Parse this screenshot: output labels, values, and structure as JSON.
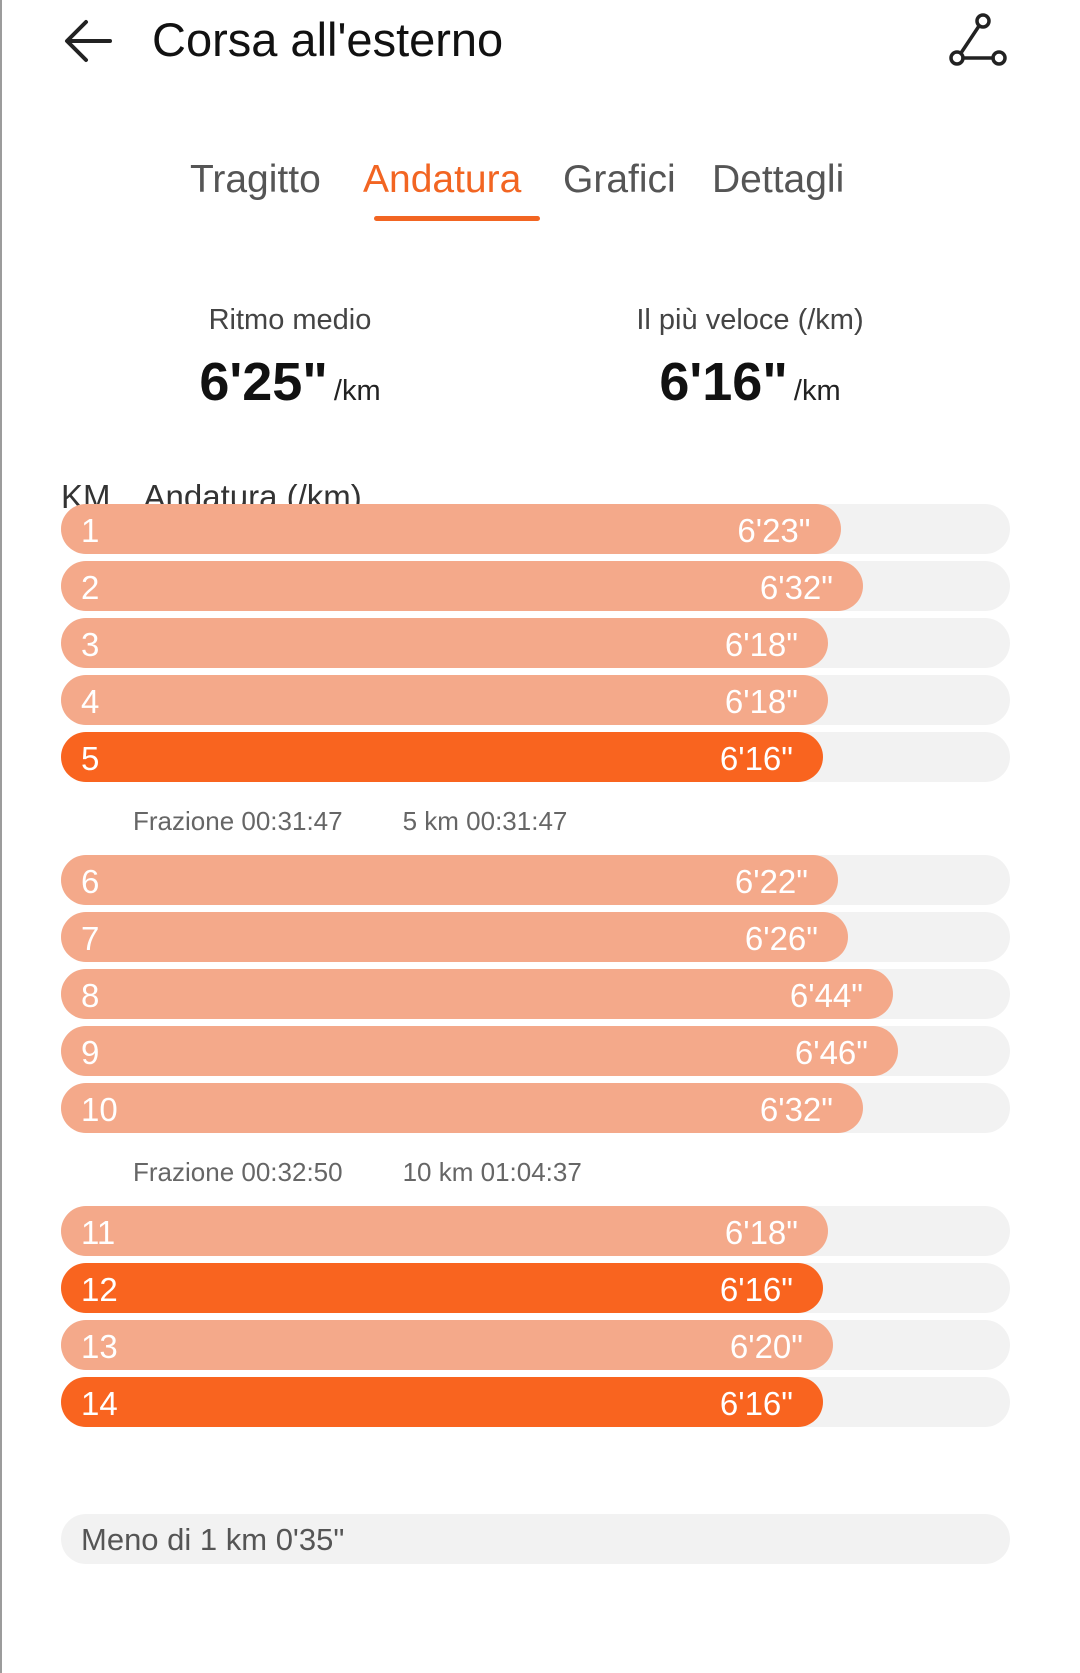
{
  "header": {
    "title": "Corsa all'esterno",
    "back_icon": "arrow-left-icon",
    "route_icon": "route-icon"
  },
  "tabs": [
    {
      "label": "Tragitto",
      "active": false
    },
    {
      "label": "Andatura",
      "active": true
    },
    {
      "label": "Grafici",
      "active": false
    },
    {
      "label": "Dettagli",
      "active": false
    }
  ],
  "summary": {
    "average": {
      "label": "Ritmo medio",
      "value": "6'25\"",
      "unit": "/km"
    },
    "fastest": {
      "label": "Il più veloce (/km)",
      "value": "6'16\"",
      "unit": "/km"
    }
  },
  "table": {
    "header_km": "KM",
    "header_pace": "Andatura (/km)"
  },
  "laps": [
    {
      "km": "1",
      "pace": "6'23\"",
      "seconds": 383,
      "fastest": false
    },
    {
      "km": "2",
      "pace": "6'32\"",
      "seconds": 392,
      "fastest": false
    },
    {
      "km": "3",
      "pace": "6'18\"",
      "seconds": 378,
      "fastest": false
    },
    {
      "km": "4",
      "pace": "6'18\"",
      "seconds": 378,
      "fastest": false
    },
    {
      "km": "5",
      "pace": "6'16\"",
      "seconds": 376,
      "fastest": true
    },
    {
      "km": "6",
      "pace": "6'22\"",
      "seconds": 382,
      "fastest": false
    },
    {
      "km": "7",
      "pace": "6'26\"",
      "seconds": 386,
      "fastest": false
    },
    {
      "km": "8",
      "pace": "6'44\"",
      "seconds": 404,
      "fastest": false
    },
    {
      "km": "9",
      "pace": "6'46\"",
      "seconds": 406,
      "fastest": false
    },
    {
      "km": "10",
      "pace": "6'32\"",
      "seconds": 392,
      "fastest": false
    },
    {
      "km": "11",
      "pace": "6'18\"",
      "seconds": 378,
      "fastest": false
    },
    {
      "km": "12",
      "pace": "6'16\"",
      "seconds": 376,
      "fastest": true
    },
    {
      "km": "13",
      "pace": "6'20\"",
      "seconds": 380,
      "fastest": false
    },
    {
      "km": "14",
      "pace": "6'16\"",
      "seconds": 376,
      "fastest": true
    }
  ],
  "splits": [
    {
      "split_label": "Frazione 00:31:47",
      "total_label": "5 km 00:31:47"
    },
    {
      "split_label": "Frazione 00:32:50",
      "total_label": "10 km 01:04:37"
    }
  ],
  "remainder": "Meno di 1 km 0'35\"",
  "colors": {
    "accent": "#f26522",
    "bar": "#f4a98a",
    "bar_fastest": "#f9641f",
    "track": "#f2f2f2"
  }
}
